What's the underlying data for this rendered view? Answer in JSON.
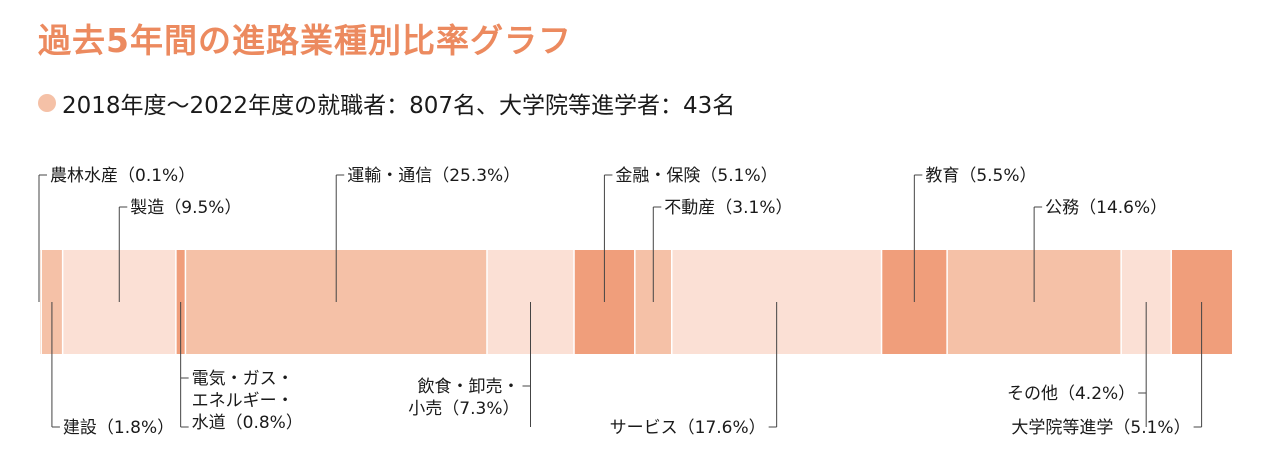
{
  "title": "過去5年間の進路業種別比率グラフ",
  "subtitle": "2018年度〜2022年度の就職者：807名、大学院等進学者：43名",
  "colors": {
    "light": "#fbe0d5",
    "medium": "#f5c1a7",
    "dark": "#f09e7b",
    "line": "#444444"
  },
  "chart_data": {
    "type": "bar",
    "stacked": true,
    "orientation": "horizontal",
    "unit": "%",
    "categories": [
      "農林水産",
      "建設",
      "製造",
      "電気・ガス・エネルギー・水道",
      "運輸・通信",
      "飲食・卸売・小売",
      "金融・保険",
      "不動産",
      "サービス",
      "教育",
      "公務",
      "その他",
      "大学院等進学"
    ],
    "values": [
      0.1,
      1.8,
      9.5,
      0.8,
      25.3,
      7.3,
      5.1,
      3.1,
      17.6,
      5.5,
      14.6,
      4.2,
      5.1
    ],
    "segment_colors": [
      "medium",
      "medium",
      "light",
      "dark",
      "medium",
      "light",
      "dark",
      "medium",
      "light",
      "dark",
      "medium",
      "light",
      "dark"
    ],
    "labels": [
      {
        "lines": [
          "農林水産（0.1%）"
        ],
        "side": "top"
      },
      {
        "lines": [
          "建設（1.8%）"
        ],
        "side": "bottom"
      },
      {
        "lines": [
          "製造（9.5%）"
        ],
        "side": "top"
      },
      {
        "lines": [
          "電気・ガス・",
          "エネルギー・",
          "水道（0.8%）"
        ],
        "side": "bottom"
      },
      {
        "lines": [
          "運輸・通信（25.3%）"
        ],
        "side": "top"
      },
      {
        "lines": [
          "飲食・卸売・",
          "小売（7.3%）"
        ],
        "side": "bottom"
      },
      {
        "lines": [
          "金融・保険（5.1%）"
        ],
        "side": "top"
      },
      {
        "lines": [
          "不動産（3.1%）"
        ],
        "side": "top"
      },
      {
        "lines": [
          "サービス（17.6%）"
        ],
        "side": "bottom"
      },
      {
        "lines": [
          "教育（5.5%）"
        ],
        "side": "top"
      },
      {
        "lines": [
          "公務（14.6%）"
        ],
        "side": "top"
      },
      {
        "lines": [
          "その他（4.2%）"
        ],
        "side": "bottom"
      },
      {
        "lines": [
          "大学院等進学（5.1%）"
        ],
        "side": "bottom"
      }
    ]
  }
}
